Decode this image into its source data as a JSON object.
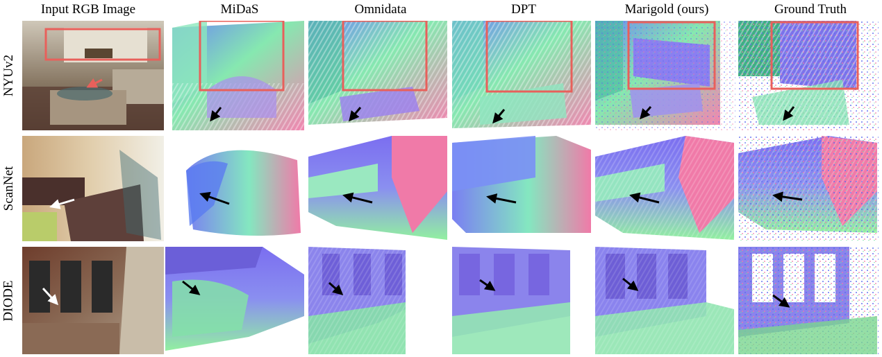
{
  "columns": [
    {
      "label": "Input RGB Image"
    },
    {
      "label": "MiDaS"
    },
    {
      "label": "Omnidata"
    },
    {
      "label": "DPT"
    },
    {
      "label": "Marigold (ours)"
    },
    {
      "label": "Ground Truth"
    }
  ],
  "rows": [
    {
      "label": "NYUv2"
    },
    {
      "label": "ScanNet"
    },
    {
      "label": "DIODE"
    }
  ],
  "colors": {
    "highlight_box": "#e8605b",
    "arrow_dark": "#000000",
    "arrow_light": "#ffffff",
    "normal_blue": "#7f7ff5",
    "normal_green": "#7ee6a0",
    "normal_pink": "#f07aa8"
  }
}
